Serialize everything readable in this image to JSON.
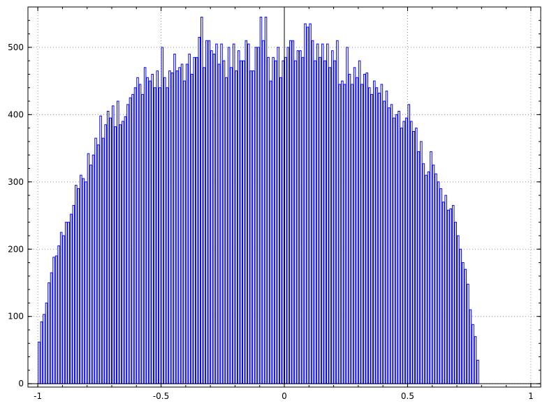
{
  "chart_data": {
    "type": "bar",
    "title": "",
    "xlabel": "",
    "ylabel": "",
    "xlim": [
      -1.04,
      1.04
    ],
    "ylim": [
      -5,
      560
    ],
    "grid": true,
    "bar_color": "#0000ff",
    "bin_start": -1.0,
    "bin_width": 0.01,
    "x_ticks": [
      -1,
      -0.5,
      0,
      0.5,
      1
    ],
    "x_tick_labels": [
      "-1",
      "-0.5",
      "0",
      "0.5",
      "1"
    ],
    "y_ticks": [
      0,
      100,
      200,
      300,
      400,
      500
    ],
    "y_tick_labels": [
      "0",
      "100",
      "200",
      "300",
      "400",
      "500"
    ],
    "values": [
      62,
      92,
      103,
      120,
      150,
      165,
      188,
      190,
      205,
      225,
      220,
      240,
      240,
      252,
      265,
      295,
      290,
      310,
      305,
      300,
      342,
      325,
      340,
      365,
      355,
      398,
      365,
      385,
      405,
      395,
      413,
      382,
      420,
      385,
      390,
      397,
      415,
      425,
      430,
      440,
      455,
      445,
      430,
      470,
      455,
      450,
      460,
      440,
      465,
      440,
      500,
      455,
      440,
      465,
      462,
      490,
      465,
      470,
      475,
      450,
      475,
      490,
      460,
      485,
      485,
      515,
      545,
      470,
      510,
      510,
      495,
      490,
      505,
      475,
      505,
      480,
      455,
      500,
      470,
      505,
      465,
      495,
      480,
      480,
      510,
      505,
      465,
      465,
      500,
      500,
      545,
      510,
      545,
      485,
      450,
      485,
      480,
      500,
      455,
      480,
      485,
      500,
      510,
      510,
      480,
      495,
      495,
      485,
      535,
      530,
      535,
      510,
      480,
      505,
      485,
      505,
      480,
      505,
      470,
      495,
      480,
      510,
      445,
      450,
      445,
      500,
      460,
      445,
      470,
      455,
      480,
      445,
      460,
      462,
      440,
      430,
      450,
      440,
      432,
      445,
      420,
      435,
      410,
      415,
      395,
      400,
      405,
      380,
      390,
      395,
      415,
      390,
      375,
      380,
      345,
      360,
      327,
      310,
      315,
      345,
      325,
      312,
      300,
      290,
      270,
      280,
      258,
      260,
      265,
      240,
      220,
      200,
      180,
      170,
      148,
      110,
      88,
      70,
      35
    ]
  }
}
